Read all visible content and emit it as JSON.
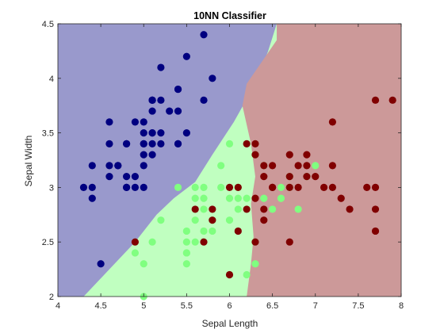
{
  "chart_data": {
    "type": "scatter",
    "title": "10NN Classifier",
    "xlabel": "Sepal Length",
    "ylabel": "Sepal Width",
    "xlim": [
      4.0,
      8.0
    ],
    "ylim": [
      2.0,
      4.5
    ],
    "xticks": [
      "4",
      "4.5",
      "5",
      "5.5",
      "6",
      "6.5",
      "7",
      "7.5",
      "8"
    ],
    "yticks": [
      "2",
      "2.5",
      "3",
      "3.5",
      "4",
      "4.5"
    ],
    "grid": false,
    "legend": "none",
    "colors": {
      "region_1": "#9999cc",
      "region_2": "#c0ffc0",
      "region_3": "#cc9999",
      "class_1": "#000080",
      "class_2": "#80ff80",
      "class_3": "#800000"
    },
    "decision_regions": [
      {
        "label": "region_1",
        "boundary_with_region_2": [
          [
            4.3,
            2.0
          ],
          [
            4.6,
            2.25
          ],
          [
            4.9,
            2.5
          ],
          [
            5.15,
            2.75
          ],
          [
            5.35,
            2.9
          ],
          [
            5.6,
            3.05
          ],
          [
            5.8,
            3.3
          ],
          [
            6.05,
            3.6
          ],
          [
            6.3,
            3.95
          ],
          [
            6.45,
            4.25
          ],
          [
            6.55,
            4.5
          ]
        ]
      },
      {
        "label": "region_3",
        "boundary_with_region_2": [
          [
            6.2,
            2.0
          ],
          [
            6.25,
            2.3
          ],
          [
            6.28,
            2.55
          ],
          [
            6.25,
            2.85
          ],
          [
            6.3,
            3.1
          ],
          [
            6.25,
            3.4
          ],
          [
            6.15,
            3.75
          ],
          [
            6.2,
            3.95
          ],
          [
            6.55,
            4.35
          ],
          [
            6.55,
            4.5
          ]
        ]
      }
    ],
    "series": [
      {
        "color": "class_1",
        "points": [
          [
            4.3,
            3.0
          ],
          [
            4.4,
            3.0
          ],
          [
            4.4,
            2.9
          ],
          [
            4.4,
            3.2
          ],
          [
            4.5,
            2.3
          ],
          [
            4.6,
            3.1
          ],
          [
            4.6,
            3.4
          ],
          [
            4.6,
            3.6
          ],
          [
            4.6,
            3.2
          ],
          [
            4.7,
            3.2
          ],
          [
            4.7,
            3.2
          ],
          [
            4.8,
            3.4
          ],
          [
            4.8,
            3.0
          ],
          [
            4.8,
            3.4
          ],
          [
            4.8,
            3.1
          ],
          [
            4.8,
            3.0
          ],
          [
            4.9,
            3.0
          ],
          [
            4.9,
            3.1
          ],
          [
            4.9,
            3.6
          ],
          [
            5.0,
            3.6
          ],
          [
            5.0,
            3.4
          ],
          [
            5.0,
            3.0
          ],
          [
            5.0,
            3.4
          ],
          [
            5.0,
            3.2
          ],
          [
            5.0,
            3.5
          ],
          [
            5.0,
            3.3
          ],
          [
            5.1,
            3.5
          ],
          [
            5.1,
            3.5
          ],
          [
            5.1,
            3.8
          ],
          [
            5.1,
            3.7
          ],
          [
            5.1,
            3.3
          ],
          [
            5.1,
            3.4
          ],
          [
            5.1,
            3.8
          ],
          [
            5.1,
            3.8
          ],
          [
            5.2,
            3.5
          ],
          [
            5.2,
            3.4
          ],
          [
            5.2,
            4.1
          ],
          [
            5.3,
            3.7
          ],
          [
            5.4,
            3.9
          ],
          [
            5.4,
            3.7
          ],
          [
            5.4,
            3.4
          ],
          [
            5.4,
            3.9
          ],
          [
            5.4,
            3.4
          ],
          [
            5.5,
            4.2
          ],
          [
            5.5,
            3.5
          ],
          [
            5.7,
            4.4
          ],
          [
            5.7,
            3.8
          ],
          [
            5.8,
            4.0
          ],
          [
            5.2,
            3.8
          ]
        ]
      },
      {
        "color": "class_2",
        "points": [
          [
            4.9,
            2.4
          ],
          [
            5.0,
            2.0
          ],
          [
            5.0,
            2.3
          ],
          [
            5.1,
            2.5
          ],
          [
            5.2,
            2.7
          ],
          [
            5.5,
            2.3
          ],
          [
            5.5,
            2.4
          ],
          [
            5.5,
            2.6
          ],
          [
            5.5,
            2.5
          ],
          [
            5.5,
            2.4
          ],
          [
            5.6,
            2.9
          ],
          [
            5.6,
            3.0
          ],
          [
            5.6,
            2.5
          ],
          [
            5.6,
            2.7
          ],
          [
            5.7,
            2.8
          ],
          [
            5.7,
            2.6
          ],
          [
            5.7,
            3.0
          ],
          [
            5.7,
            2.9
          ],
          [
            5.8,
            2.7
          ],
          [
            5.8,
            2.6
          ],
          [
            5.9,
            3.0
          ],
          [
            5.9,
            3.2
          ],
          [
            6.0,
            2.2
          ],
          [
            6.0,
            2.9
          ],
          [
            6.0,
            2.7
          ],
          [
            6.0,
            3.4
          ],
          [
            6.1,
            2.8
          ],
          [
            6.1,
            2.9
          ],
          [
            6.1,
            3.0
          ],
          [
            6.2,
            2.2
          ],
          [
            6.2,
            2.9
          ],
          [
            6.3,
            2.3
          ],
          [
            6.3,
            3.3
          ],
          [
            6.4,
            3.2
          ],
          [
            6.4,
            2.9
          ],
          [
            6.5,
            2.8
          ],
          [
            6.6,
            2.9
          ],
          [
            6.6,
            3.0
          ],
          [
            6.7,
            3.1
          ],
          [
            6.7,
            3.0
          ],
          [
            6.8,
            2.8
          ],
          [
            6.9,
            3.1
          ],
          [
            7.0,
            3.2
          ],
          [
            5.4,
            3.0
          ],
          [
            6.3,
            2.5
          ]
        ]
      },
      {
        "color": "class_3",
        "points": [
          [
            4.9,
            2.5
          ],
          [
            5.6,
            2.8
          ],
          [
            5.7,
            2.5
          ],
          [
            5.8,
            2.7
          ],
          [
            5.8,
            2.8
          ],
          [
            6.0,
            3.0
          ],
          [
            6.0,
            2.2
          ],
          [
            6.1,
            2.6
          ],
          [
            6.1,
            3.0
          ],
          [
            6.2,
            2.8
          ],
          [
            6.2,
            3.4
          ],
          [
            6.3,
            3.3
          ],
          [
            6.3,
            2.9
          ],
          [
            6.3,
            2.5
          ],
          [
            6.3,
            3.4
          ],
          [
            6.4,
            2.7
          ],
          [
            6.4,
            3.2
          ],
          [
            6.4,
            2.8
          ],
          [
            6.4,
            3.1
          ],
          [
            6.5,
            3.0
          ],
          [
            6.5,
            3.2
          ],
          [
            6.5,
            3.0
          ],
          [
            6.7,
            2.5
          ],
          [
            6.7,
            3.3
          ],
          [
            6.7,
            3.1
          ],
          [
            6.7,
            3.0
          ],
          [
            6.8,
            3.2
          ],
          [
            6.8,
            3.0
          ],
          [
            6.9,
            3.2
          ],
          [
            6.9,
            3.1
          ],
          [
            7.1,
            3.0
          ],
          [
            7.2,
            3.6
          ],
          [
            7.2,
            3.2
          ],
          [
            7.2,
            3.0
          ],
          [
            7.3,
            2.9
          ],
          [
            7.4,
            2.8
          ],
          [
            7.6,
            3.0
          ],
          [
            7.7,
            3.8
          ],
          [
            7.7,
            2.6
          ],
          [
            7.7,
            2.8
          ],
          [
            7.7,
            3.0
          ],
          [
            7.9,
            3.8
          ],
          [
            7.0,
            3.1
          ],
          [
            6.9,
            3.3
          ]
        ]
      }
    ]
  }
}
